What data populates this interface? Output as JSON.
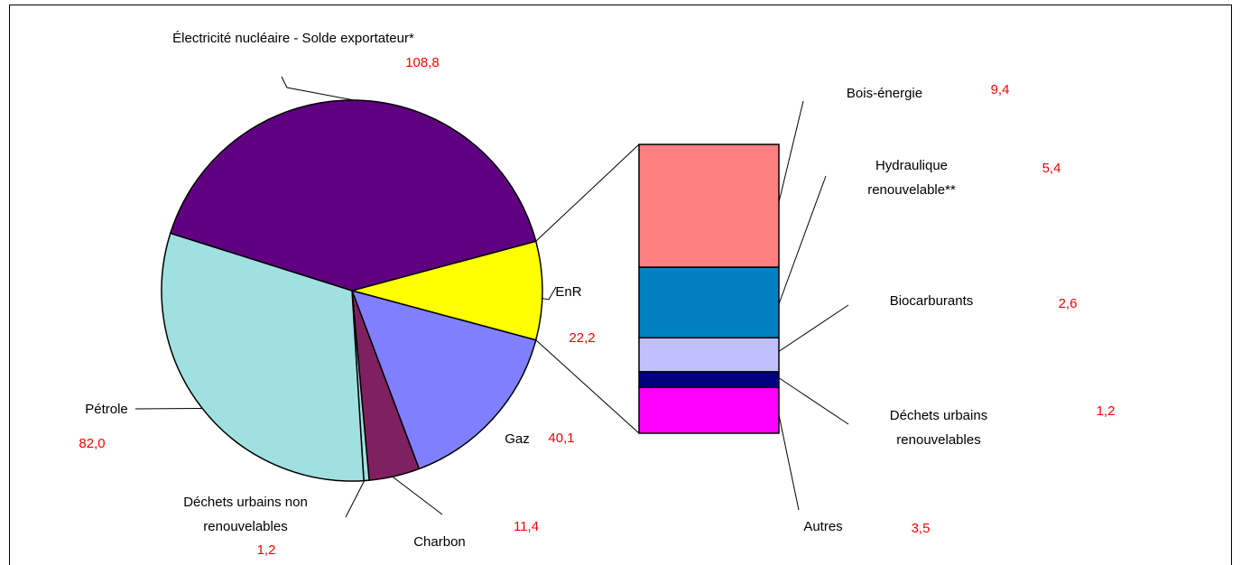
{
  "chart_data": {
    "type": "pie",
    "categories": [
      "EnR",
      "Gaz",
      "Charbon",
      "Déchets urbains non renouvelables",
      "Pétrole",
      "Électricité nucléaire - Solde exportateur*"
    ],
    "values": [
      22.2,
      40.1,
      11.4,
      1.2,
      82.0,
      108.8
    ],
    "value_labels": [
      "22,2",
      "40,1",
      "11,4",
      "1,2",
      "82,0",
      "108,8"
    ],
    "colors": [
      "#ffff00",
      "#8080ff",
      "#802060",
      "#a0e0e0",
      "#a0e0e0",
      "#600080"
    ],
    "breakdown": {
      "type": "bar",
      "categories": [
        "Bois-énergie",
        "Hydraulique renouvelable**",
        "Biocarburants",
        "Déchets urbains renouvelables",
        "Autres"
      ],
      "values": [
        9.4,
        5.4,
        2.6,
        1.2,
        3.5
      ],
      "value_labels": [
        "9,4",
        "5,4",
        "2,6",
        "1,2",
        "3,5"
      ],
      "colors": [
        "#ff8080",
        "#0080c0",
        "#c0c0ff",
        "#000080",
        "#ff00ff"
      ]
    }
  }
}
